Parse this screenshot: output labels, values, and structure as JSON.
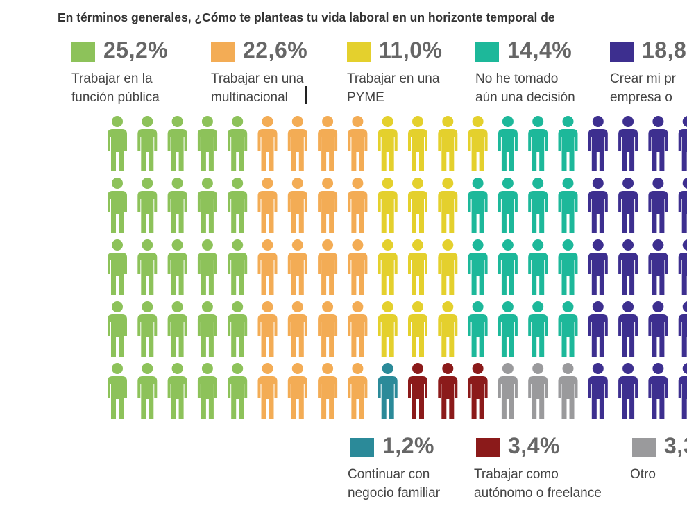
{
  "title": "En términos generales, ¿Cómo te planteas tu vida laboral en un horizonte temporal de",
  "chart_data": {
    "type": "pictogram",
    "title": "En términos generales, ¿Cómo te planteas tu vida laboral en un horizonte temporal de",
    "series": [
      {
        "name": "Trabajar en la función pública",
        "value": 25.2,
        "label": "25,2%",
        "line1": "Trabajar en la",
        "line2": "función pública",
        "color": "#8dc25a"
      },
      {
        "name": "Trabajar en una multinacional",
        "value": 22.6,
        "label": "22,6%",
        "line1": "Trabajar en una",
        "line2": "multinacional",
        "color": "#f3ac55"
      },
      {
        "name": "Trabajar en una PYME",
        "value": 11.0,
        "label": "11,0%",
        "line1": "Trabajar en una",
        "line2": "PYME",
        "color": "#e4d02d"
      },
      {
        "name": "No he tomado aún una decisión",
        "value": 14.4,
        "label": "14,4%",
        "line1": "No he tomado",
        "line2": "aún una decisión",
        "color": "#1db89a"
      },
      {
        "name": "Crear mi pr… empresa o …",
        "value": 18.8,
        "label": "18,8",
        "line1": "Crear mi pr",
        "line2": "empresa o",
        "color": "#3d2f8f"
      },
      {
        "name": "Continuar con negocio familiar",
        "value": 1.2,
        "label": "1,2%",
        "line1": "Continuar con",
        "line2": "negocio familiar",
        "color": "#2b8a99"
      },
      {
        "name": "Trabajar como autónomo o freelance",
        "value": 3.4,
        "label": "3,4%",
        "line1": "Trabajar como",
        "line2": "autónomo o freelance",
        "color": "#8b1a1a"
      },
      {
        "name": "Otro",
        "value": 3.3,
        "label": "3,3",
        "line1": "Otro",
        "line2": "",
        "color": "#9a9a9c"
      }
    ],
    "grid_rows": [
      [
        "g",
        "g",
        "g",
        "g",
        "g",
        "o",
        "o",
        "o",
        "o",
        "y",
        "y",
        "y",
        "y",
        "t",
        "t",
        "t",
        "p",
        "p",
        "p",
        "p"
      ],
      [
        "g",
        "g",
        "g",
        "g",
        "g",
        "o",
        "o",
        "o",
        "o",
        "y",
        "y",
        "y",
        "t",
        "t",
        "t",
        "t",
        "p",
        "p",
        "p",
        "p"
      ],
      [
        "g",
        "g",
        "g",
        "g",
        "g",
        "o",
        "o",
        "o",
        "o",
        "y",
        "y",
        "y",
        "t",
        "t",
        "t",
        "t",
        "p",
        "p",
        "p",
        "p"
      ],
      [
        "g",
        "g",
        "g",
        "g",
        "g",
        "o",
        "o",
        "o",
        "o",
        "y",
        "y",
        "y",
        "t",
        "t",
        "t",
        "t",
        "p",
        "p",
        "p",
        "p"
      ],
      [
        "g",
        "g",
        "g",
        "g",
        "g",
        "o",
        "o",
        "o",
        "o",
        "b",
        "r",
        "r",
        "r",
        "x",
        "x",
        "x",
        "p",
        "p",
        "p",
        "p"
      ]
    ],
    "color_key": {
      "g": "#8dc25a",
      "o": "#f3ac55",
      "y": "#e4d02d",
      "t": "#1db89a",
      "p": "#3d2f8f",
      "b": "#2b8a99",
      "r": "#8b1a1a",
      "x": "#9a9a9c"
    }
  }
}
